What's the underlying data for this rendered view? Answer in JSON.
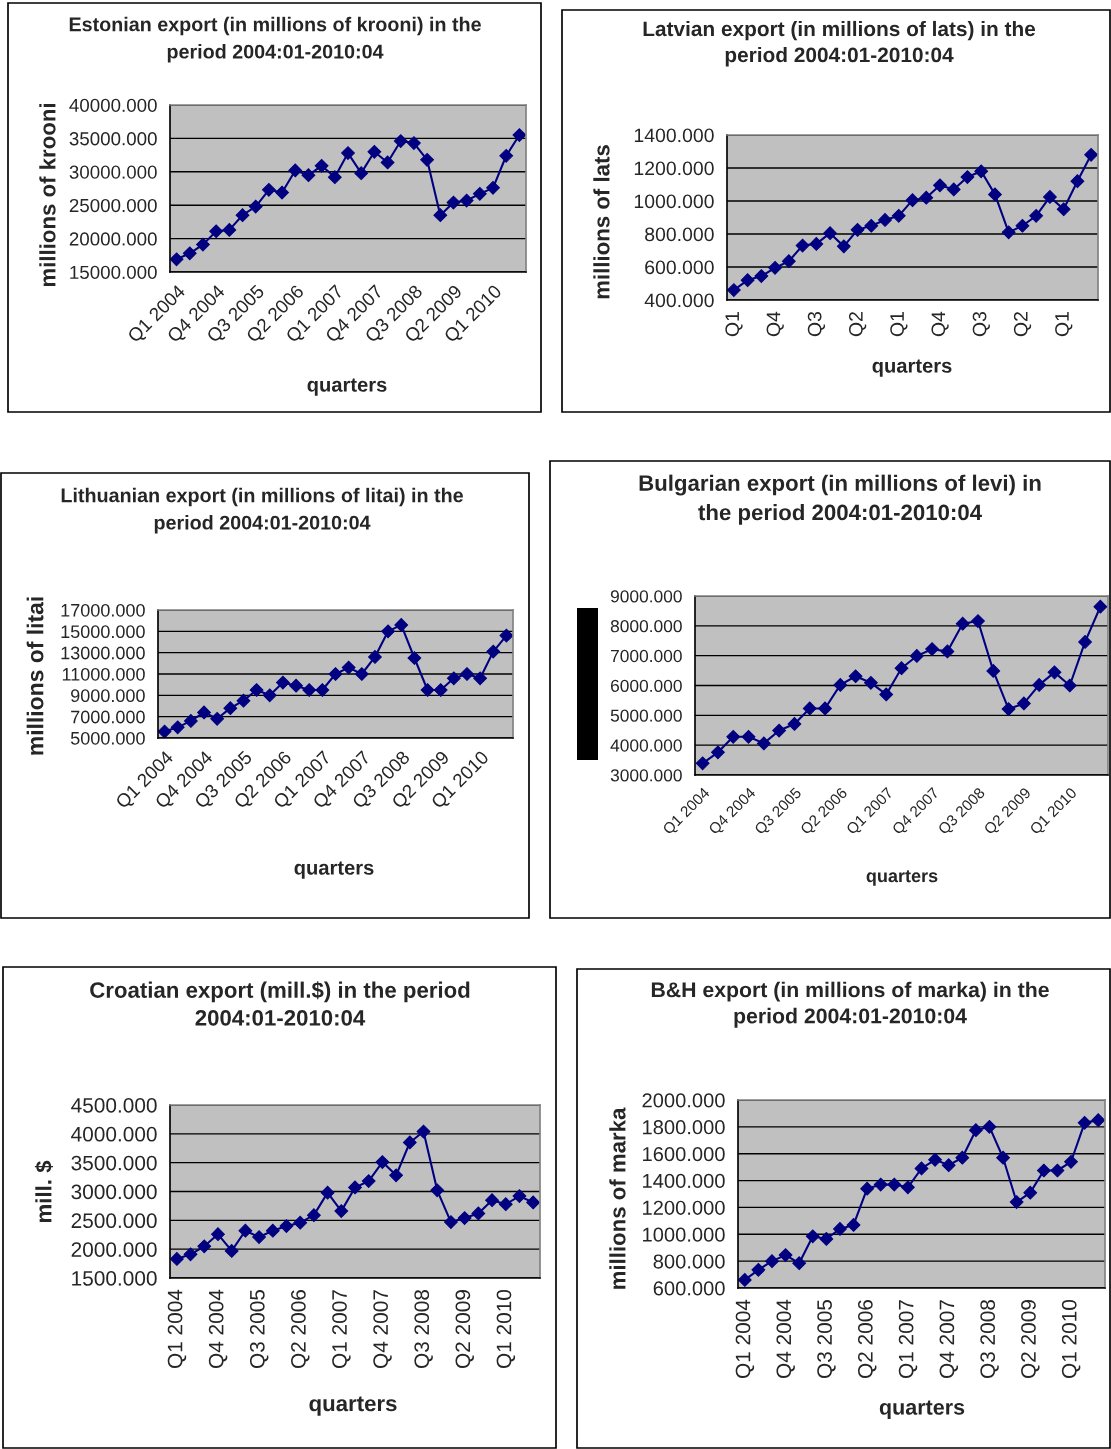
{
  "chart_data": [
    {
      "type": "line",
      "title": "Estonian export (in millions of krooni) in the\nperiod 2004:01-2010:04",
      "xlabel": "quarters",
      "ylabel": "millions of krooni",
      "categories": [
        "Q1 2004",
        null,
        null,
        "Q4 2004",
        null,
        null,
        "Q3 2005",
        null,
        null,
        "Q2 2006",
        null,
        null,
        "Q1 2007",
        null,
        null,
        "Q4 2007",
        null,
        null,
        "Q3 2008",
        null,
        null,
        "Q2 2009",
        null,
        null,
        "Q1 2010",
        null,
        null
      ],
      "series": [
        {
          "color": "#000080",
          "values": [
            16900,
            17800,
            19100,
            21100,
            21300,
            23500,
            24800,
            27300,
            26900,
            30200,
            29500,
            30900,
            29200,
            32800,
            29800,
            33000,
            31400,
            34600,
            34300,
            31800,
            23500,
            25400,
            25700,
            26700,
            27600,
            32400,
            35500
          ]
        }
      ],
      "ylim": [
        15000,
        40000
      ],
      "yticks": [
        {
          "value": 15000,
          "label": "15000.000"
        },
        {
          "value": 20000,
          "label": "20000.000"
        },
        {
          "value": 25000,
          "label": "25000.000"
        },
        {
          "value": 30000,
          "label": "30000.000"
        },
        {
          "value": 35000,
          "label": "35000.000"
        },
        {
          "value": 40000,
          "label": "40000.000"
        }
      ],
      "grid": "y",
      "marker": "diamond",
      "line_style": "solid"
    },
    {
      "type": "line",
      "title": "Latvian export (in millions of lats) in the\nperiod 2004:01-2010:04",
      "xlabel": "quarters",
      "ylabel": "millions of lats",
      "categories": [
        "Q1",
        null,
        null,
        "Q4",
        null,
        null,
        "Q3",
        null,
        null,
        "Q2",
        null,
        null,
        "Q1",
        null,
        null,
        "Q4",
        null,
        null,
        "Q3",
        null,
        null,
        "Q2",
        null,
        null,
        "Q1",
        null,
        null
      ],
      "series": [
        {
          "color": "#000080",
          "values": [
            460,
            520,
            545,
            595,
            635,
            730,
            740,
            805,
            725,
            825,
            850,
            885,
            910,
            1005,
            1020,
            1095,
            1070,
            1145,
            1180,
            1040,
            810,
            850,
            910,
            1025,
            950,
            1120,
            1280
          ]
        }
      ],
      "ylim": [
        400,
        1400
      ],
      "yticks": [
        {
          "value": 400,
          "label": "400.000"
        },
        {
          "value": 600,
          "label": "600.000"
        },
        {
          "value": 800,
          "label": "800.000"
        },
        {
          "value": 1000,
          "label": "1000.000"
        },
        {
          "value": 1200,
          "label": "1200.000"
        },
        {
          "value": 1400,
          "label": "1400.000"
        }
      ],
      "grid": "y",
      "marker": "diamond",
      "line_style": "solid"
    },
    {
      "type": "line",
      "title": "Lithuanian export (in millions of litai) in the\nperiod 2004:01-2010:04",
      "xlabel": "quarters",
      "ylabel": "millions of litai",
      "categories": [
        "Q1 2004",
        null,
        null,
        "Q4 2004",
        null,
        null,
        "Q3 2005",
        null,
        null,
        "Q2 2006",
        null,
        null,
        "Q1 2007",
        null,
        null,
        "Q4 2007",
        null,
        null,
        "Q3 2008",
        null,
        null,
        "Q2 2009",
        null,
        null,
        "Q1 2010",
        null,
        null
      ],
      "series": [
        {
          "color": "#000080",
          "values": [
            5600,
            6000,
            6600,
            7400,
            6800,
            7800,
            8500,
            9500,
            9000,
            10200,
            9900,
            9500,
            9500,
            11000,
            11600,
            11000,
            12600,
            15000,
            15600,
            12500,
            9500,
            9500,
            10600,
            11000,
            10600,
            13100,
            14600
          ]
        }
      ],
      "ylim": [
        5000,
        17000
      ],
      "yticks": [
        {
          "value": 5000,
          "label": "5000.000"
        },
        {
          "value": 7000,
          "label": "7000.000"
        },
        {
          "value": 9000,
          "label": "9000.000"
        },
        {
          "value": 11000,
          "label": "11000.000"
        },
        {
          "value": 13000,
          "label": "13000.000"
        },
        {
          "value": 15000,
          "label": "15000.000"
        },
        {
          "value": 17000,
          "label": "17000.000"
        }
      ],
      "grid": "y",
      "marker": "diamond",
      "line_style": "solid"
    },
    {
      "type": "line",
      "title": "Bulgarian export (in millions of levi) in\nthe period 2004:01-2010:04",
      "xlabel": "quarters",
      "categories": [
        "Q1 2004",
        null,
        null,
        "Q4 2004",
        null,
        null,
        "Q3 2005",
        null,
        null,
        "Q2 2006",
        null,
        null,
        "Q1 2007",
        null,
        null,
        "Q4 2007",
        null,
        null,
        "Q3 2008",
        null,
        null,
        "Q2 2009",
        null,
        null,
        "Q1 2010",
        null,
        null
      ],
      "series": [
        {
          "color": "#000080",
          "values": [
            3390,
            3760,
            4280,
            4280,
            4060,
            4490,
            4710,
            5230,
            5230,
            6020,
            6310,
            6090,
            5700,
            6580,
            6990,
            7220,
            7140,
            8070,
            8160,
            6490,
            5210,
            5400,
            6020,
            6440,
            6000,
            7460,
            8640
          ]
        }
      ],
      "ylim": [
        3000,
        9000
      ],
      "yticks": [
        {
          "value": 3000,
          "label": "3000.000"
        },
        {
          "value": 4000,
          "label": "4000.000"
        },
        {
          "value": 5000,
          "label": "5000.000"
        },
        {
          "value": 6000,
          "label": "6000.000"
        },
        {
          "value": 7000,
          "label": "7000.000"
        },
        {
          "value": 8000,
          "label": "8000.000"
        },
        {
          "value": 9000,
          "label": "9000.000"
        }
      ],
      "grid": "y",
      "marker": "diamond",
      "line_style": "solid"
    },
    {
      "type": "line",
      "title": "Croatian export (mill.$) in the period\n2004:01-2010:04",
      "xlabel": "quarters",
      "ylabel": "mill. $",
      "categories": [
        "Q1 2004",
        null,
        null,
        "Q4 2004",
        null,
        null,
        "Q3 2005",
        null,
        null,
        "Q2 2006",
        null,
        null,
        "Q1 2007",
        null,
        null,
        "Q4 2007",
        null,
        null,
        "Q3 2008",
        null,
        null,
        "Q2 2009",
        null,
        null,
        "Q1 2010",
        null,
        null
      ],
      "series": [
        {
          "color": "#000080",
          "values": [
            1830,
            1910,
            2050,
            2260,
            1970,
            2320,
            2210,
            2320,
            2400,
            2460,
            2590,
            2980,
            2660,
            3070,
            3180,
            3510,
            3280,
            3850,
            4040,
            3020,
            2470,
            2540,
            2620,
            2850,
            2780,
            2920,
            2810
          ]
        }
      ],
      "ylim": [
        1500,
        4500
      ],
      "yticks": [
        {
          "value": 1500,
          "label": "1500.000"
        },
        {
          "value": 2000,
          "label": "2000.000"
        },
        {
          "value": 2500,
          "label": "2500.000"
        },
        {
          "value": 3000,
          "label": "3000.000"
        },
        {
          "value": 3500,
          "label": "3500.000"
        },
        {
          "value": 4000,
          "label": "4000.000"
        },
        {
          "value": 4500,
          "label": "4500.000"
        }
      ],
      "grid": "y",
      "marker": "diamond",
      "line_style": "solid"
    },
    {
      "type": "line",
      "title": "B&H export (in millions of marka) in the\nperiod 2004:01-2010:04",
      "xlabel": "quarters",
      "ylabel": "millions of marka",
      "categories": [
        "Q1 2004",
        null,
        null,
        "Q4 2004",
        null,
        null,
        "Q3 2005",
        null,
        null,
        "Q2 2006",
        null,
        null,
        "Q1 2007",
        null,
        null,
        "Q4 2007",
        null,
        null,
        "Q3 2008",
        null,
        null,
        "Q2 2009",
        null,
        null,
        "Q1 2010",
        null,
        null
      ],
      "series": [
        {
          "color": "#000080",
          "values": [
            660,
            735,
            800,
            845,
            785,
            985,
            965,
            1040,
            1070,
            1340,
            1370,
            1370,
            1350,
            1490,
            1555,
            1515,
            1570,
            1775,
            1800,
            1570,
            1240,
            1310,
            1475,
            1475,
            1540,
            1830,
            1850
          ]
        }
      ],
      "ylim": [
        600,
        2000
      ],
      "yticks": [
        {
          "value": 600,
          "label": "600.000"
        },
        {
          "value": 800,
          "label": "800.000"
        },
        {
          "value": 1000,
          "label": "1000.000"
        },
        {
          "value": 1200,
          "label": "1200.000"
        },
        {
          "value": 1400,
          "label": "1400.000"
        },
        {
          "value": 1600,
          "label": "1600.000"
        },
        {
          "value": 1800,
          "label": "1800.000"
        },
        {
          "value": 2000,
          "label": "2000.000"
        }
      ],
      "grid": "y",
      "marker": "diamond",
      "line_style": "solid"
    }
  ]
}
